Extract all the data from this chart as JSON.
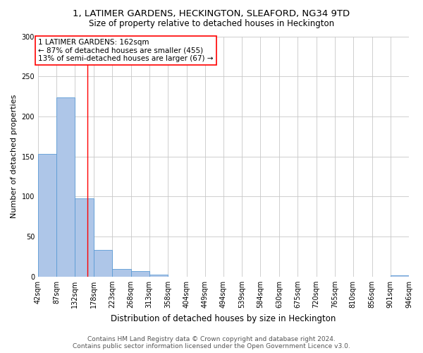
{
  "title1": "1, LATIMER GARDENS, HECKINGTON, SLEAFORD, NG34 9TD",
  "title2": "Size of property relative to detached houses in Heckington",
  "xlabel": "Distribution of detached houses by size in Heckington",
  "ylabel": "Number of detached properties",
  "footnote1": "Contains HM Land Registry data © Crown copyright and database right 2024.",
  "footnote2": "Contains public sector information licensed under the Open Government Licence v3.0.",
  "annotation_line1": "1 LATIMER GARDENS: 162sqm",
  "annotation_line2": "← 87% of detached houses are smaller (455)",
  "annotation_line3": "13% of semi-detached houses are larger (67) →",
  "bar_edges": [
    42,
    87,
    132,
    178,
    223,
    268,
    313,
    358,
    404,
    449,
    494,
    539,
    584,
    630,
    675,
    720,
    765,
    810,
    856,
    901,
    946
  ],
  "bar_heights": [
    153,
    224,
    98,
    33,
    10,
    7,
    3,
    0,
    0,
    0,
    0,
    0,
    0,
    0,
    0,
    0,
    0,
    0,
    0,
    2
  ],
  "bar_color": "#aec6e8",
  "bar_edgecolor": "#5b9bd5",
  "red_line_x": 162,
  "ylim": [
    0,
    300
  ],
  "yticks": [
    0,
    50,
    100,
    150,
    200,
    250,
    300
  ],
  "background_color": "#ffffff",
  "grid_color": "#c8c8c8",
  "title_fontsize": 9.5,
  "subtitle_fontsize": 8.5,
  "axis_label_fontsize": 8,
  "tick_fontsize": 7,
  "footnote_fontsize": 6.5,
  "annotation_fontsize": 7.5
}
